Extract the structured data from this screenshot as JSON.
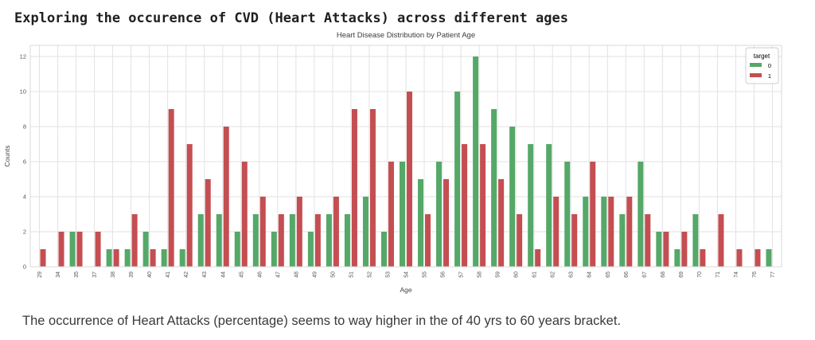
{
  "page": {
    "heading": "Exploring the occurence of CVD (Heart Attacks) across different ages",
    "caption": "The occurrence of Heart Attacks (percentage) seems to way higher in the of 40 yrs to 60 years bracket."
  },
  "chart_data": {
    "type": "bar",
    "title": "Heart Disease Distribution by Patient Age",
    "xlabel": "Age",
    "ylabel": "Counts",
    "ylim": [
      0,
      12
    ],
    "yticks": [
      0,
      2,
      4,
      6,
      8,
      10,
      12
    ],
    "grid": true,
    "legend": {
      "title": "target",
      "position": "upper-right",
      "entries": [
        {
          "label": "0",
          "color": "#55a868"
        },
        {
          "label": "1",
          "color": "#c44e52"
        }
      ]
    },
    "categories": [
      29,
      34,
      35,
      37,
      38,
      39,
      40,
      41,
      42,
      43,
      44,
      45,
      46,
      47,
      48,
      49,
      50,
      51,
      52,
      53,
      54,
      55,
      56,
      57,
      58,
      59,
      60,
      61,
      62,
      63,
      64,
      65,
      66,
      67,
      68,
      69,
      70,
      71,
      74,
      76,
      77
    ],
    "series": [
      {
        "name": "0",
        "color": "#55a868",
        "values": [
          0,
          0,
          2,
          0,
          1,
          1,
          2,
          1,
          1,
          3,
          3,
          2,
          3,
          2,
          3,
          2,
          3,
          3,
          4,
          2,
          6,
          5,
          6,
          10,
          12,
          9,
          8,
          7,
          7,
          6,
          4,
          4,
          3,
          6,
          2,
          1,
          3,
          0,
          0,
          0,
          1
        ]
      },
      {
        "name": "1",
        "color": "#c44e52",
        "values": [
          1,
          2,
          2,
          2,
          1,
          3,
          1,
          9,
          7,
          5,
          8,
          6,
          4,
          3,
          4,
          3,
          4,
          9,
          9,
          6,
          10,
          3,
          5,
          7,
          7,
          5,
          3,
          1,
          4,
          3,
          6,
          4,
          4,
          3,
          2,
          2,
          1,
          3,
          1,
          1,
          0
        ]
      }
    ],
    "colors": {
      "grid": "#e2e2e2",
      "frame": "#d9d9d9",
      "tick_label": "#555555",
      "title": "#3c3c3c"
    }
  }
}
